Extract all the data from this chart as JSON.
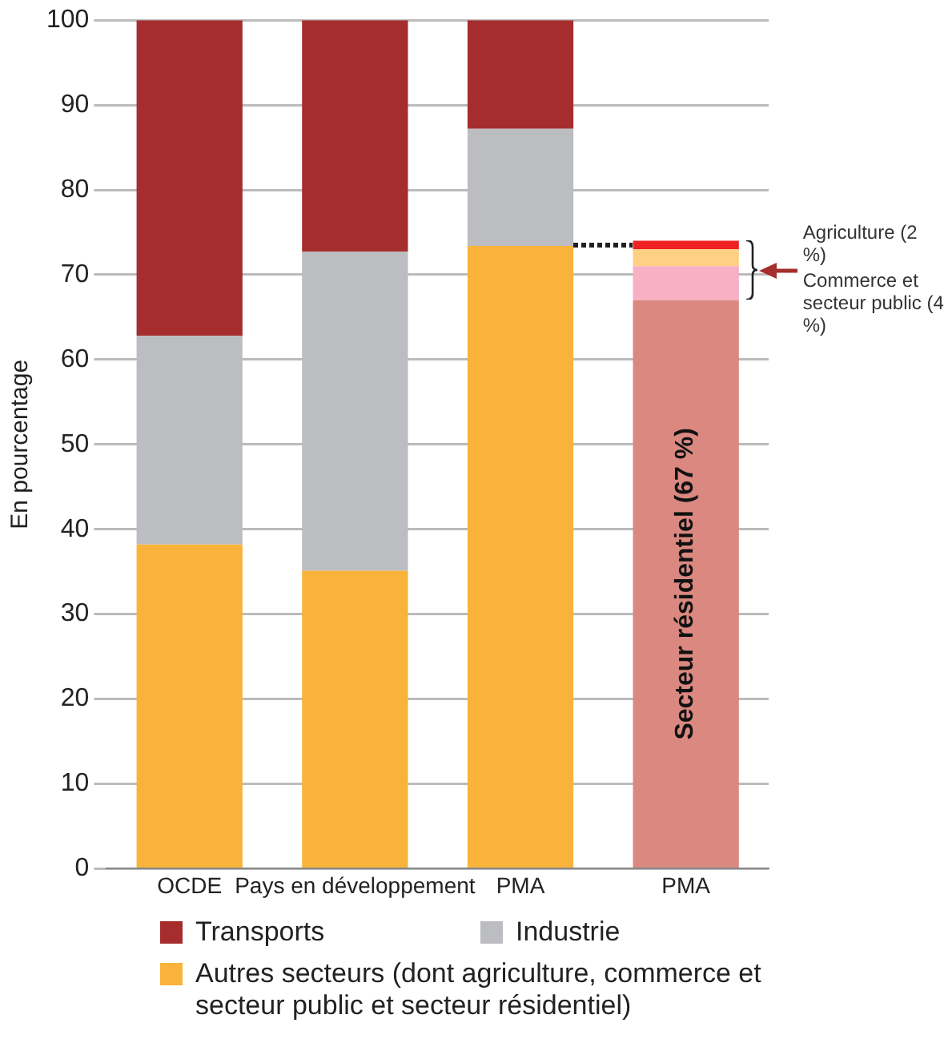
{
  "chart_data": {
    "type": "bar",
    "stacked": true,
    "ylabel": "En pourcentage",
    "categories": [
      "OCDE",
      "Pays en développement",
      "PMA",
      "PMA"
    ],
    "series": [
      {
        "name": "Autres secteurs (dont agriculture, commerce et secteur public et secteur résidentiel)",
        "color": "#f9b23a",
        "values": [
          38.2,
          35.1,
          73.4,
          null
        ]
      },
      {
        "name": "Industrie",
        "color": "#bcbdc0",
        "values": [
          24.6,
          37.6,
          13.8,
          null
        ]
      },
      {
        "name": "Transports",
        "color": "#a52d2d",
        "values": [
          37.2,
          27.3,
          12.8,
          null
        ]
      },
      {
        "color": "#da8880",
        "values": [
          null,
          null,
          null,
          67
        ]
      },
      {
        "color": "#f7b0c4",
        "values": [
          null,
          null,
          null,
          4
        ]
      },
      {
        "color": "#fdd083",
        "values": [
          null,
          null,
          null,
          2
        ]
      },
      {
        "color": "#ee2224",
        "values": [
          null,
          null,
          null,
          1
        ]
      }
    ],
    "ylim": [
      0,
      100
    ],
    "yticks": [
      0,
      10,
      20,
      30,
      40,
      50,
      60,
      70,
      80,
      90,
      100
    ],
    "grid": "y",
    "legend": "bottom",
    "annotations": [
      "Secteur résidentiel (67 %)",
      "Agriculture (2 %)",
      "Commerce et secteur public (4 %)"
    ]
  }
}
